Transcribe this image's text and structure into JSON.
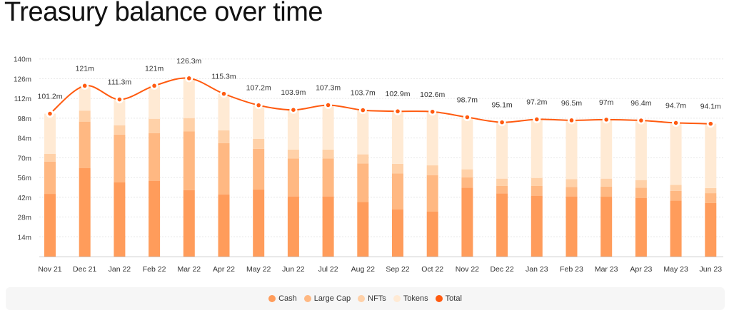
{
  "chart_data": {
    "type": "bar",
    "stacked": true,
    "title": "Treasury balance over time",
    "categories": [
      "Nov 21",
      "Dec 21",
      "Jan 22",
      "Feb 22",
      "Mar 22",
      "Apr 22",
      "May 22",
      "Jun 22",
      "Jul 22",
      "Aug 22",
      "Sep 22",
      "Oct 22",
      "Nov 22",
      "Dec 22",
      "Jan 23",
      "Feb 23",
      "Mar 23",
      "Apr 23",
      "May 23",
      "Jun 23"
    ],
    "series": [
      {
        "name": "Cash",
        "color": "#ff9c5b",
        "values": [
          44.4,
          62.6,
          52.5,
          53.7,
          47.1,
          43.9,
          47.5,
          42.6,
          42.6,
          38.6,
          33.5,
          31.8,
          48.8,
          44.8,
          43.1,
          42.6,
          42.4,
          41.4,
          39.6,
          37.9
        ]
      },
      {
        "name": "Large Cap",
        "color": "#ffb882",
        "values": [
          22.9,
          33.0,
          33.9,
          33.8,
          41.5,
          36.4,
          28.8,
          26.8,
          26.8,
          27.4,
          25.3,
          25.9,
          7.3,
          5.2,
          6.9,
          6.6,
          7.1,
          7.4,
          6.9,
          7.0
        ]
      },
      {
        "name": "NFTs",
        "color": "#ffd1a8",
        "values": [
          5.4,
          7.8,
          6.5,
          10.1,
          9.5,
          9.1,
          7.0,
          6.4,
          6.4,
          6.4,
          6.9,
          6.9,
          5.7,
          5.2,
          5.7,
          5.7,
          5.7,
          5.4,
          4.3,
          3.6
        ]
      },
      {
        "name": "Tokens",
        "color": "#ffead4",
        "values": [
          28.5,
          17.6,
          18.4,
          23.4,
          28.2,
          25.9,
          23.9,
          28.1,
          31.5,
          31.3,
          37.2,
          38.0,
          36.9,
          39.9,
          41.5,
          41.6,
          41.8,
          42.2,
          43.9,
          45.6
        ]
      }
    ],
    "line": {
      "name": "Total",
      "color": "#ff5a0f",
      "values": [
        101.2,
        121,
        111.3,
        121,
        126.3,
        115.3,
        107.2,
        103.9,
        107.3,
        103.7,
        102.9,
        102.6,
        98.7,
        95.1,
        97.2,
        96.5,
        97,
        96.4,
        94.7,
        94.1
      ],
      "labels": [
        "101.2m",
        "121m",
        "111.3m",
        "121m",
        "126.3m",
        "115.3m",
        "107.2m",
        "103.9m",
        "107.3m",
        "103.7m",
        "102.9m",
        "102.6m",
        "98.7m",
        "95.1m",
        "97.2m",
        "96.5m",
        "97m",
        "96.4m",
        "94.7m",
        "94.1m"
      ]
    },
    "yticks": [
      14,
      28,
      42,
      56,
      70,
      84,
      98,
      112,
      126,
      140
    ],
    "ytick_labels": [
      "14m",
      "28m",
      "42m",
      "56m",
      "70m",
      "84m",
      "98m",
      "112m",
      "126m",
      "140m"
    ],
    "ylim": [
      0,
      140
    ],
    "xlabel": "",
    "ylabel": "",
    "grid": true,
    "legend_position": "bottom"
  }
}
